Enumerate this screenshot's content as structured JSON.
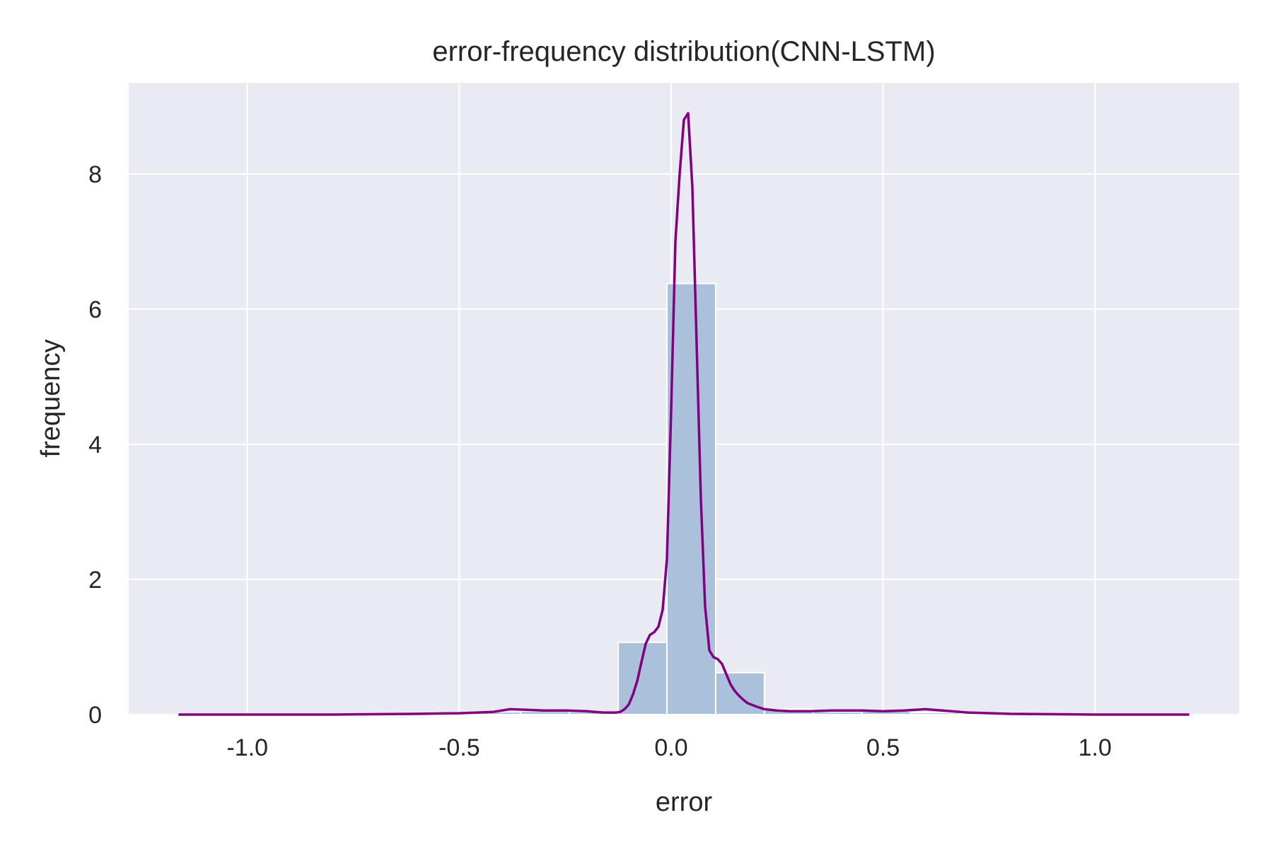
{
  "chart_data": {
    "type": "bar",
    "title": "error-frequency distribution(CNN-LSTM)",
    "xlabel": "error",
    "ylabel": "frequency",
    "xlim": [
      -1.28,
      1.34
    ],
    "ylim": [
      0,
      9.35
    ],
    "grid": true,
    "xticks": [
      -1.0,
      -0.5,
      0.0,
      0.5,
      1.0
    ],
    "xtick_labels": [
      "-1.0",
      "-0.5",
      "0.0",
      "0.5",
      "1.0"
    ],
    "yticks": [
      0,
      2,
      4,
      6,
      8
    ],
    "ytick_labels": [
      "0",
      "2",
      "4",
      "6",
      "8"
    ],
    "colors": {
      "background": "#eaeaf2",
      "bars": "#a8bfd9",
      "kde": "#800080"
    },
    "histogram": [
      {
        "x0": -1.16,
        "x1": -1.045,
        "value": 0.0
      },
      {
        "x0": -1.045,
        "x1": -0.93,
        "value": 0.0
      },
      {
        "x0": -0.93,
        "x1": -0.815,
        "value": 0.0
      },
      {
        "x0": -0.815,
        "x1": -0.7,
        "value": 0.0
      },
      {
        "x0": -0.7,
        "x1": -0.585,
        "value": 0.0
      },
      {
        "x0": -0.585,
        "x1": -0.47,
        "value": 0.02
      },
      {
        "x0": -0.47,
        "x1": -0.355,
        "value": 0.04
      },
      {
        "x0": -0.355,
        "x1": -0.24,
        "value": 0.05
      },
      {
        "x0": -0.24,
        "x1": -0.125,
        "value": 0.04
      },
      {
        "x0": -0.125,
        "x1": -0.01,
        "value": 1.07
      },
      {
        "x0": -0.01,
        "x1": 0.105,
        "value": 6.38
      },
      {
        "x0": 0.105,
        "x1": 0.22,
        "value": 0.62
      },
      {
        "x0": 0.22,
        "x1": 0.335,
        "value": 0.08
      },
      {
        "x0": 0.335,
        "x1": 0.45,
        "value": 0.04
      },
      {
        "x0": 0.45,
        "x1": 0.565,
        "value": 0.05
      },
      {
        "x0": 0.565,
        "x1": 0.68,
        "value": 0.03
      },
      {
        "x0": 0.68,
        "x1": 0.795,
        "value": 0.01
      },
      {
        "x0": 0.795,
        "x1": 0.91,
        "value": 0.0
      },
      {
        "x0": 0.91,
        "x1": 1.025,
        "value": 0.0
      },
      {
        "x0": 1.025,
        "x1": 1.14,
        "value": 0.0
      }
    ],
    "kde": {
      "x": [
        -1.16,
        -0.8,
        -0.6,
        -0.5,
        -0.42,
        -0.38,
        -0.34,
        -0.3,
        -0.25,
        -0.2,
        -0.16,
        -0.13,
        -0.12,
        -0.11,
        -0.1,
        -0.09,
        -0.08,
        -0.07,
        -0.06,
        -0.05,
        -0.04,
        -0.03,
        -0.02,
        -0.01,
        0.0,
        0.01,
        0.02,
        0.03,
        0.04,
        0.05,
        0.06,
        0.07,
        0.08,
        0.09,
        0.1,
        0.11,
        0.12,
        0.13,
        0.14,
        0.15,
        0.16,
        0.17,
        0.18,
        0.2,
        0.22,
        0.25,
        0.28,
        0.3,
        0.33,
        0.38,
        0.45,
        0.5,
        0.55,
        0.6,
        0.7,
        0.8,
        1.0,
        1.22
      ],
      "y": [
        0.0,
        0.0,
        0.01,
        0.02,
        0.04,
        0.08,
        0.07,
        0.06,
        0.06,
        0.05,
        0.03,
        0.03,
        0.04,
        0.08,
        0.15,
        0.3,
        0.5,
        0.78,
        1.05,
        1.18,
        1.22,
        1.3,
        1.55,
        2.3,
        4.5,
        7.0,
        8.0,
        8.8,
        8.9,
        7.8,
        5.5,
        3.2,
        1.6,
        0.95,
        0.85,
        0.82,
        0.75,
        0.6,
        0.45,
        0.35,
        0.28,
        0.22,
        0.17,
        0.12,
        0.08,
        0.06,
        0.05,
        0.05,
        0.05,
        0.06,
        0.06,
        0.05,
        0.06,
        0.08,
        0.03,
        0.01,
        0.0,
        0.0
      ]
    }
  }
}
